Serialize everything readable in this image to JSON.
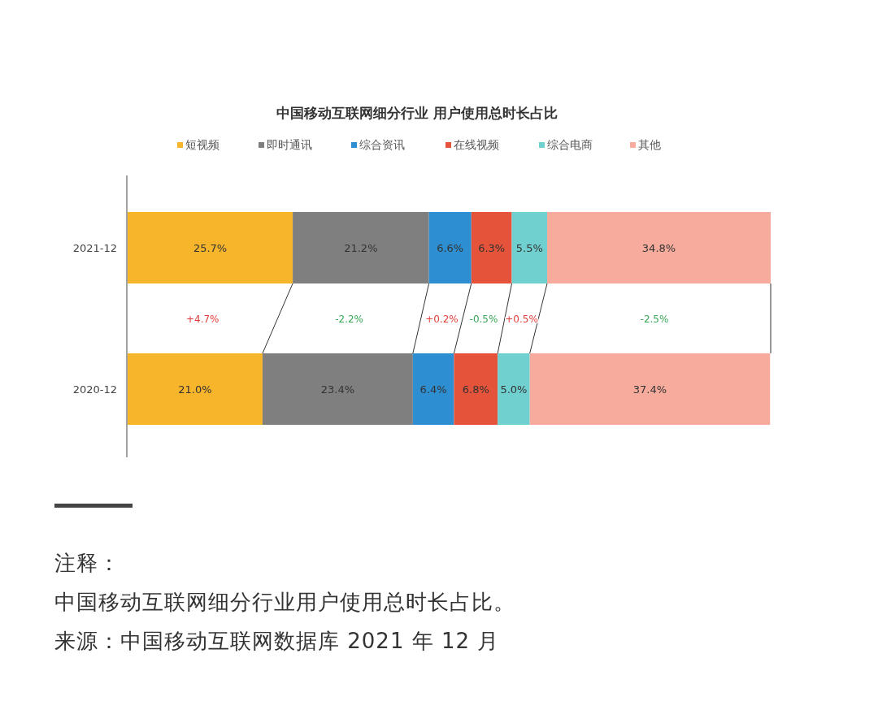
{
  "chart_data": {
    "type": "bar",
    "orientation": "horizontal",
    "stacked": true,
    "title": "中国移动互联网细分行业 用户使用总时长占比",
    "categories": [
      "2021-12",
      "2020-12"
    ],
    "series": [
      {
        "name": "短视频",
        "color": "#f7b52c",
        "values": [
          25.7,
          21.0
        ],
        "value_labels": [
          "25.7%",
          "21.0%"
        ]
      },
      {
        "name": "即时通讯",
        "color": "#7f7f7f",
        "values": [
          21.2,
          23.4
        ],
        "value_labels": [
          "21.2%",
          "23.4%"
        ]
      },
      {
        "name": "综合资讯",
        "color": "#2d8fd2",
        "values": [
          6.6,
          6.4
        ],
        "value_labels": [
          "6.6%",
          "6.4%"
        ]
      },
      {
        "name": "在线视频",
        "color": "#e4533a",
        "values": [
          6.3,
          6.8
        ],
        "value_labels": [
          "6.3%",
          "6.8%"
        ]
      },
      {
        "name": "综合电商",
        "color": "#6fd0cf",
        "values": [
          5.5,
          5.0
        ],
        "value_labels": [
          "5.5%",
          "5.0%"
        ]
      },
      {
        "name": "其他",
        "color": "#f6ab9c",
        "values": [
          34.8,
          37.4
        ],
        "value_labels": [
          "34.8%",
          "37.4%"
        ]
      }
    ],
    "legend": "top",
    "annotations": [
      "+4.7%",
      "-2.2%",
      "+0.2%",
      "-0.5%",
      "+0.5%",
      "-2.5%",
      "注释：",
      "中国移动互联网细分行业用户使用总时长占比。",
      "来源：中国移动互联网数据库 2021 年 12 月"
    ]
  }
}
